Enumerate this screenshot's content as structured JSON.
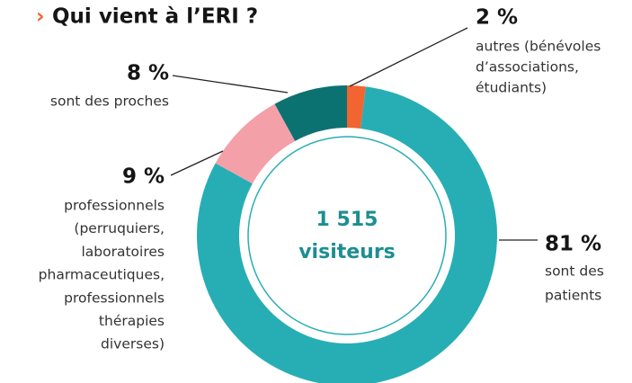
{
  "chart_data": {
    "type": "donut",
    "title_marker": "›",
    "title": "Qui vient à l’ERI ?",
    "center_label": [
      "1 515",
      "visiteurs"
    ],
    "values": [
      2,
      81,
      9,
      8
    ],
    "value_labels": [
      "2 %",
      "81 %",
      "9 %",
      "8 %"
    ],
    "descriptions": [
      [
        "autres (bénévoles",
        "d’associations,",
        "étudiants)"
      ],
      [
        "sont des",
        "patients"
      ],
      [
        "professionnels",
        "(perruquiers,",
        "laboratoires",
        "pharmaceutiques,",
        "professionnels",
        "thérapies",
        "diverses)"
      ],
      [
        "sont des proches"
      ]
    ],
    "colors": [
      "#f26430",
      "#27aeb4",
      "#f4a0a8",
      "#0c7271"
    ]
  }
}
